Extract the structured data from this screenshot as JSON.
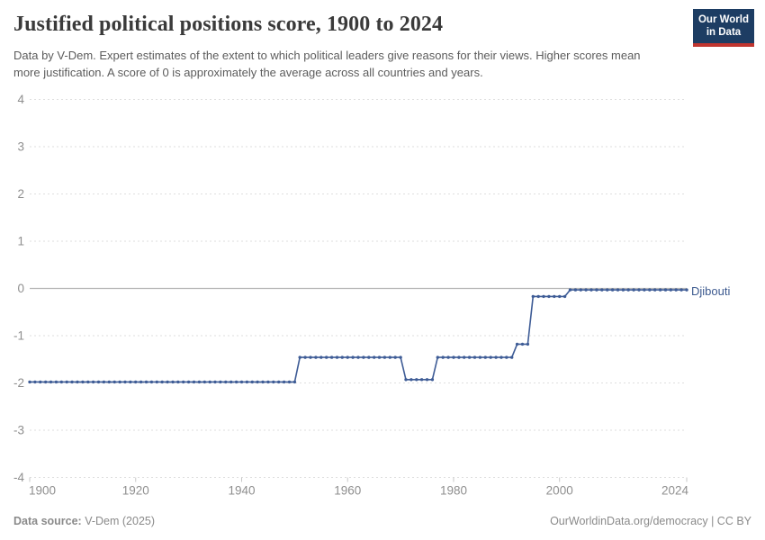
{
  "header": {
    "title": "Justified political positions score, 1900 to 2024",
    "subtitle": "Data by V-Dem. Expert estimates of the extent to which political leaders give reasons for their views. Higher scores mean more justification. A score of 0 is approximately the average across all countries and years.",
    "logo_line1": "Our World",
    "logo_line2": "in Data"
  },
  "footer": {
    "source_label": "Data source:",
    "source_value": " V-Dem (2025)",
    "right_text": "OurWorldinData.org/democracy | CC BY"
  },
  "colors": {
    "series_blue": "#3e5c96",
    "entity_label_blue": "#3d5a8f",
    "grid_dashed": "#dedede",
    "zero_line": "#b5b5b5",
    "axis_label_gray": "#8f8f8f",
    "tick_mark_gray": "#c8c8c8",
    "logo_navy": "#1d3d63",
    "logo_red": "#c0352f"
  },
  "chart_data": {
    "type": "line",
    "title": "Justified political positions score, 1900 to 2024",
    "xlabel": "",
    "ylabel": "",
    "x_axis": {
      "min": 1900,
      "max": 2024,
      "ticks": [
        1900,
        1920,
        1940,
        1960,
        1980,
        2000,
        2024
      ]
    },
    "y_axis": {
      "min": -4,
      "max": 4,
      "ticks": [
        4,
        3,
        2,
        1,
        0,
        -1,
        -2,
        -3,
        -4
      ]
    },
    "grid": "horizontal dashed gridlines, solid line at y=0",
    "legend_position": "label at end of line",
    "marker": "point-per-year",
    "series": [
      {
        "name": "Djibouti",
        "color": "#3e5c96",
        "segments": [
          {
            "from": 1900,
            "to": 1950,
            "value": -1.98
          },
          {
            "from": 1951,
            "to": 1970,
            "value": -1.46
          },
          {
            "from": 1971,
            "to": 1976,
            "value": -1.93
          },
          {
            "from": 1977,
            "to": 1991,
            "value": -1.46
          },
          {
            "from": 1992,
            "to": 1994,
            "value": -1.18
          },
          {
            "from": 1995,
            "to": 2001,
            "value": -0.17
          },
          {
            "from": 2002,
            "to": 2024,
            "value": -0.03
          }
        ]
      }
    ]
  }
}
